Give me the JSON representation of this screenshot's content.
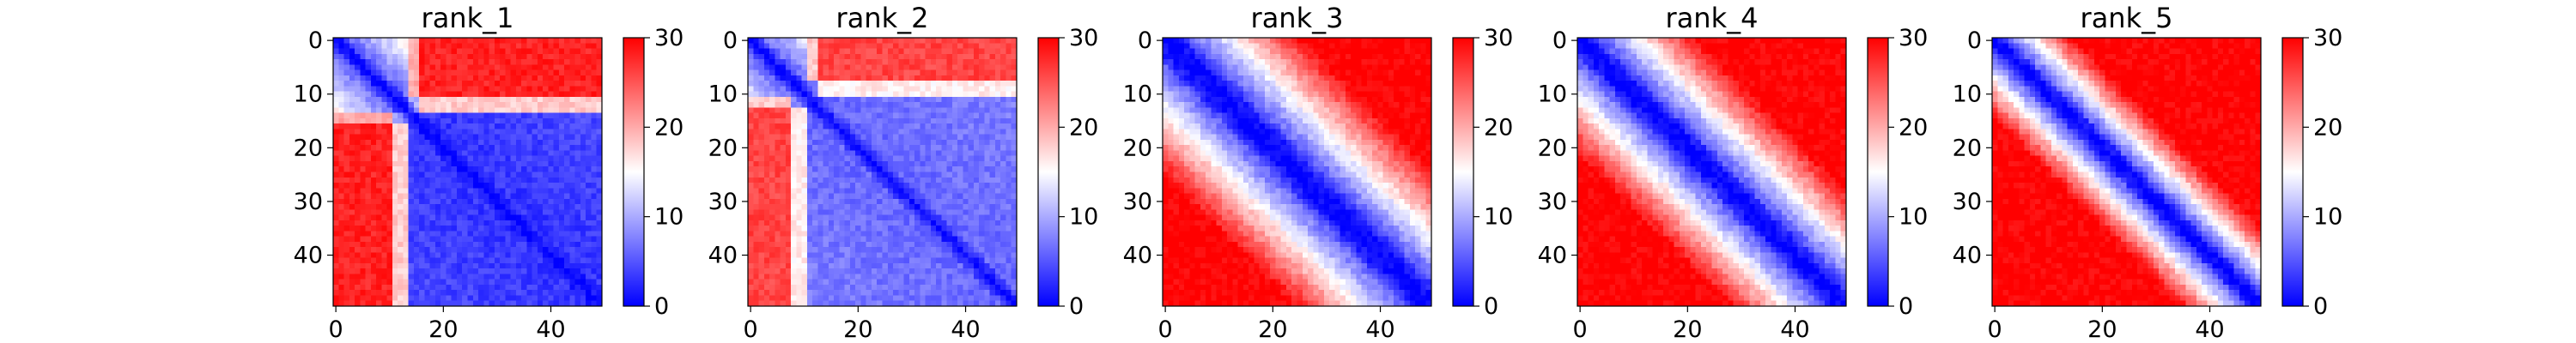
{
  "chart_data": [
    {
      "type": "heatmap",
      "title": "rank_1",
      "rows": 50,
      "cols": 50,
      "x_ticks": [
        0,
        20,
        40
      ],
      "y_ticks": [
        0,
        10,
        20,
        30,
        40
      ],
      "colorbar": {
        "min": 0,
        "max": 30,
        "ticks": [
          0,
          10,
          20,
          30
        ]
      },
      "colormap": {
        "low": "#0000ff",
        "mid": "#ffffff",
        "high": "#ff0000"
      },
      "pattern": "block-split",
      "block_boundary": 14,
      "within_block_level": 3,
      "cross_block_level": 28,
      "diagonal_width": 3
    },
    {
      "type": "heatmap",
      "title": "rank_2",
      "rows": 50,
      "cols": 50,
      "x_ticks": [
        0,
        20,
        40
      ],
      "y_ticks": [
        0,
        10,
        20,
        30,
        40
      ],
      "colorbar": {
        "min": 0,
        "max": 30,
        "ticks": [
          0,
          10,
          20,
          30
        ]
      },
      "colormap": {
        "low": "#0000ff",
        "mid": "#ffffff",
        "high": "#ff0000"
      },
      "pattern": "block-split",
      "block_boundary": 11,
      "within_block_level": 6,
      "cross_block_level": 26,
      "diagonal_width": 3
    },
    {
      "type": "heatmap",
      "title": "rank_3",
      "rows": 50,
      "cols": 50,
      "x_ticks": [
        0,
        20,
        40
      ],
      "y_ticks": [
        0,
        10,
        20,
        30,
        40
      ],
      "colorbar": {
        "min": 0,
        "max": 30,
        "ticks": [
          0,
          10,
          20,
          30
        ]
      },
      "colormap": {
        "low": "#0000ff",
        "mid": "#ffffff",
        "high": "#ff0000"
      },
      "pattern": "distance-gradient",
      "diagonal_width": 5,
      "saturation_distance": 26
    },
    {
      "type": "heatmap",
      "title": "rank_4",
      "rows": 50,
      "cols": 50,
      "x_ticks": [
        0,
        20,
        40
      ],
      "y_ticks": [
        0,
        10,
        20,
        30,
        40
      ],
      "colorbar": {
        "min": 0,
        "max": 30,
        "ticks": [
          0,
          10,
          20,
          30
        ]
      },
      "colormap": {
        "low": "#0000ff",
        "mid": "#ffffff",
        "high": "#ff0000"
      },
      "pattern": "distance-gradient",
      "diagonal_width": 4,
      "saturation_distance": 22
    },
    {
      "type": "heatmap",
      "title": "rank_5",
      "rows": 50,
      "cols": 50,
      "x_ticks": [
        0,
        20,
        40
      ],
      "y_ticks": [
        0,
        10,
        20,
        30,
        40
      ],
      "colorbar": {
        "min": 0,
        "max": 30,
        "ticks": [
          0,
          10,
          20,
          30
        ]
      },
      "colormap": {
        "low": "#0000ff",
        "mid": "#ffffff",
        "high": "#ff0000"
      },
      "pattern": "distance-gradient",
      "diagonal_width": 3,
      "saturation_distance": 15
    }
  ]
}
